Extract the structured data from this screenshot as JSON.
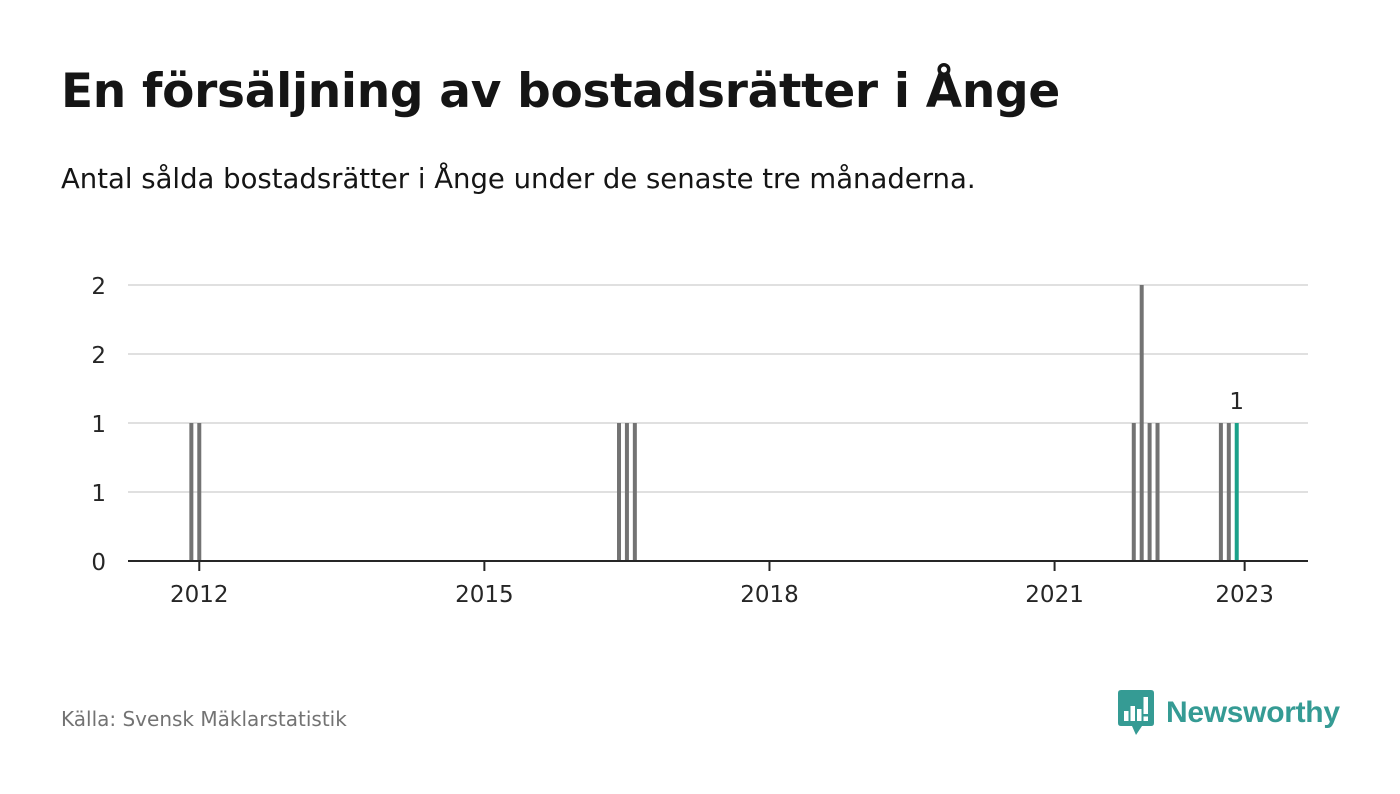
{
  "title": "En försäljning av bostadsrätter i Ånge",
  "subtitle": "Antal sålda bostadsrätter i Ånge under de senaste tre månaderna.",
  "source": "Källa: Svensk Mäklarstatistik",
  "brand": {
    "name": "Newsworthy",
    "icon": "newsworthy-logo-icon"
  },
  "colors": {
    "bar": "#737373",
    "highlight": "#1aa189",
    "grid": "#e0e0e0",
    "axis": "#262626",
    "text": "#262626",
    "brand": "#359b94"
  },
  "chart_data": {
    "type": "bar",
    "title": "En försäljning av bostadsrätter i Ånge",
    "xlabel": "",
    "ylabel": "",
    "grid": true,
    "x_axis": {
      "ticks": [
        "2012",
        "2015",
        "2018",
        "2021",
        "2023"
      ],
      "range": [
        "2011-04",
        "2023-09"
      ]
    },
    "y_axis": {
      "ticks": [
        {
          "value": 0,
          "label": "0"
        },
        {
          "value": 0.5,
          "label": "1"
        },
        {
          "value": 1,
          "label": "1"
        },
        {
          "value": 1.5,
          "label": "2"
        },
        {
          "value": 2,
          "label": "2"
        }
      ],
      "ylim": [
        0,
        2
      ]
    },
    "bars": [
      {
        "period": "2011-12",
        "value": 1
      },
      {
        "period": "2012-01",
        "value": 1
      },
      {
        "period": "2016-06",
        "value": 1
      },
      {
        "period": "2016-07",
        "value": 1
      },
      {
        "period": "2016-08",
        "value": 1
      },
      {
        "period": "2021-11",
        "value": 1
      },
      {
        "period": "2021-12",
        "value": 2
      },
      {
        "period": "2022-01",
        "value": 1
      },
      {
        "period": "2022-02",
        "value": 1
      },
      {
        "period": "2022-10",
        "value": 1
      },
      {
        "period": "2022-11",
        "value": 1
      },
      {
        "period": "2022-12",
        "value": 1,
        "highlight": true,
        "label": "1"
      }
    ]
  }
}
